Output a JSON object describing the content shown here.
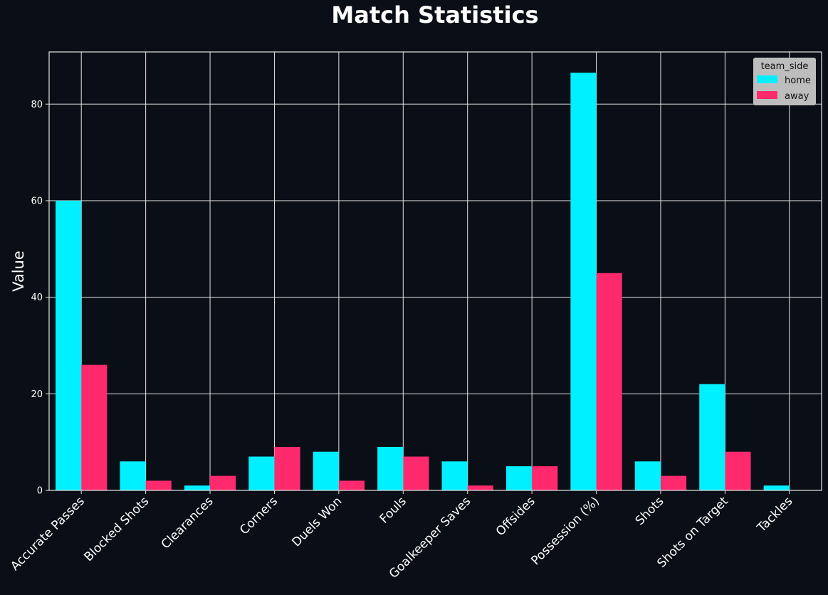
{
  "chart_data": {
    "type": "bar",
    "title": "Match Statistics",
    "xlabel": "",
    "ylabel": "Value",
    "ylim": [
      0,
      90.8
    ],
    "yticks": [
      0,
      20,
      40,
      60,
      80
    ],
    "grid": true,
    "legend": {
      "title": "team_side",
      "placement": "top-right"
    },
    "categories": [
      "Accurate Passes",
      "Blocked Shots",
      "Clearances",
      "Corners",
      "Duels Won",
      "Fouls",
      "Goalkeeper Saves",
      "Offsides",
      "Possession (%)",
      "Shots",
      "Shots on Target",
      "Tackles"
    ],
    "series": [
      {
        "name": "home",
        "color": "#00f0ff",
        "values": [
          60,
          6,
          1,
          7,
          8,
          9,
          6,
          5,
          86.5,
          6,
          22,
          1
        ]
      },
      {
        "name": "away",
        "color": "#ff2a6d",
        "values": [
          26,
          2,
          3,
          9,
          2,
          7,
          1,
          5,
          45,
          3,
          8,
          0
        ]
      }
    ]
  },
  "colors": {
    "background": "#0a0e16",
    "grid": "#e6e6e6",
    "legend_bg": "#bdbdbd"
  }
}
